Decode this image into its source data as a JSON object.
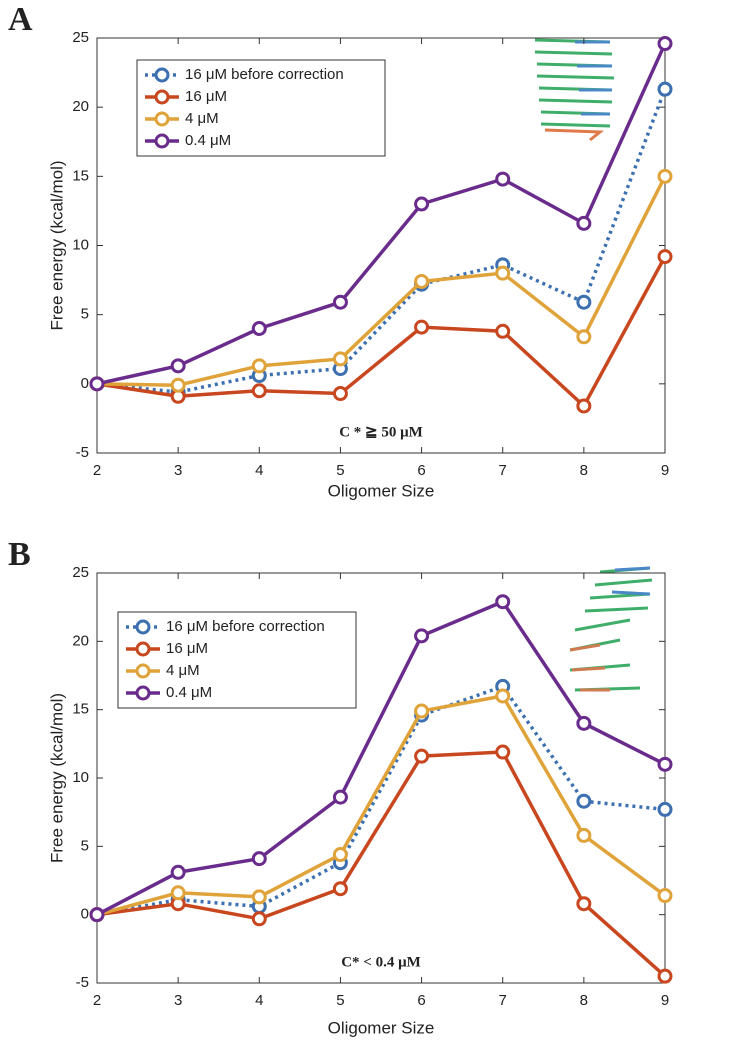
{
  "chart_data": [
    {
      "type": "line",
      "panel_label": "A",
      "annotation": "C * ≧ 50 μM",
      "x_label": "Oligomer Size",
      "y_label": "Free energy (kcal/mol)",
      "x": [
        2,
        3,
        4,
        5,
        6,
        7,
        8,
        9
      ],
      "xlim": [
        2,
        9
      ],
      "xticks": [
        2,
        3,
        4,
        5,
        6,
        7,
        8,
        9
      ],
      "ylim": [
        -5,
        25
      ],
      "yticks": [
        -5,
        0,
        5,
        10,
        15,
        20,
        25
      ],
      "legend": "upper left",
      "series": [
        {
          "name": "16 μM before correction",
          "color": "#3c70b0",
          "dashed": true,
          "values": [
            0,
            -0.6,
            0.6,
            1.1,
            7.2,
            8.6,
            5.9,
            21.3
          ]
        },
        {
          "name": "16 μM",
          "color": "#c8471f",
          "dashed": false,
          "values": [
            0,
            -0.9,
            -0.5,
            -0.7,
            4.1,
            3.8,
            -1.6,
            9.2
          ]
        },
        {
          "name": "4 μM",
          "color": "#dfa33a",
          "dashed": false,
          "values": [
            0,
            -0.1,
            1.3,
            1.8,
            7.4,
            8.0,
            3.4,
            15.0
          ]
        },
        {
          "name": "0.4 μM",
          "color": "#6a2c8c",
          "dashed": false,
          "values": [
            0,
            1.3,
            4.0,
            5.9,
            13.0,
            14.8,
            11.6,
            24.6
          ]
        }
      ]
    },
    {
      "type": "line",
      "panel_label": "B",
      "annotation": "C* < 0.4 μM",
      "x_label": "Oligomer Size",
      "y_label": "Free energy (kcal/mol)",
      "x": [
        2,
        3,
        4,
        5,
        6,
        7,
        8,
        9
      ],
      "xlim": [
        2,
        9
      ],
      "xticks": [
        2,
        3,
        4,
        5,
        6,
        7,
        8,
        9
      ],
      "ylim": [
        -5,
        25
      ],
      "yticks": [
        -5,
        0,
        5,
        10,
        15,
        20,
        25
      ],
      "legend": "upper left",
      "series": [
        {
          "name": "16 μM before correction",
          "color": "#3c70b0",
          "dashed": true,
          "values": [
            0,
            1.1,
            0.6,
            3.8,
            14.6,
            16.7,
            8.3,
            7.7
          ]
        },
        {
          "name": "16 μM",
          "color": "#c8471f",
          "dashed": false,
          "values": [
            0,
            0.8,
            -0.3,
            1.9,
            11.6,
            11.9,
            0.8,
            -4.5
          ]
        },
        {
          "name": "4 μM",
          "color": "#dfa33a",
          "dashed": false,
          "values": [
            0,
            1.6,
            1.3,
            4.4,
            14.9,
            16.0,
            5.8,
            1.4
          ]
        },
        {
          "name": "0.4 μM",
          "color": "#6a2c8c",
          "dashed": false,
          "values": [
            0,
            3.1,
            4.1,
            8.6,
            20.4,
            22.9,
            14.0,
            11.0
          ]
        }
      ]
    }
  ]
}
